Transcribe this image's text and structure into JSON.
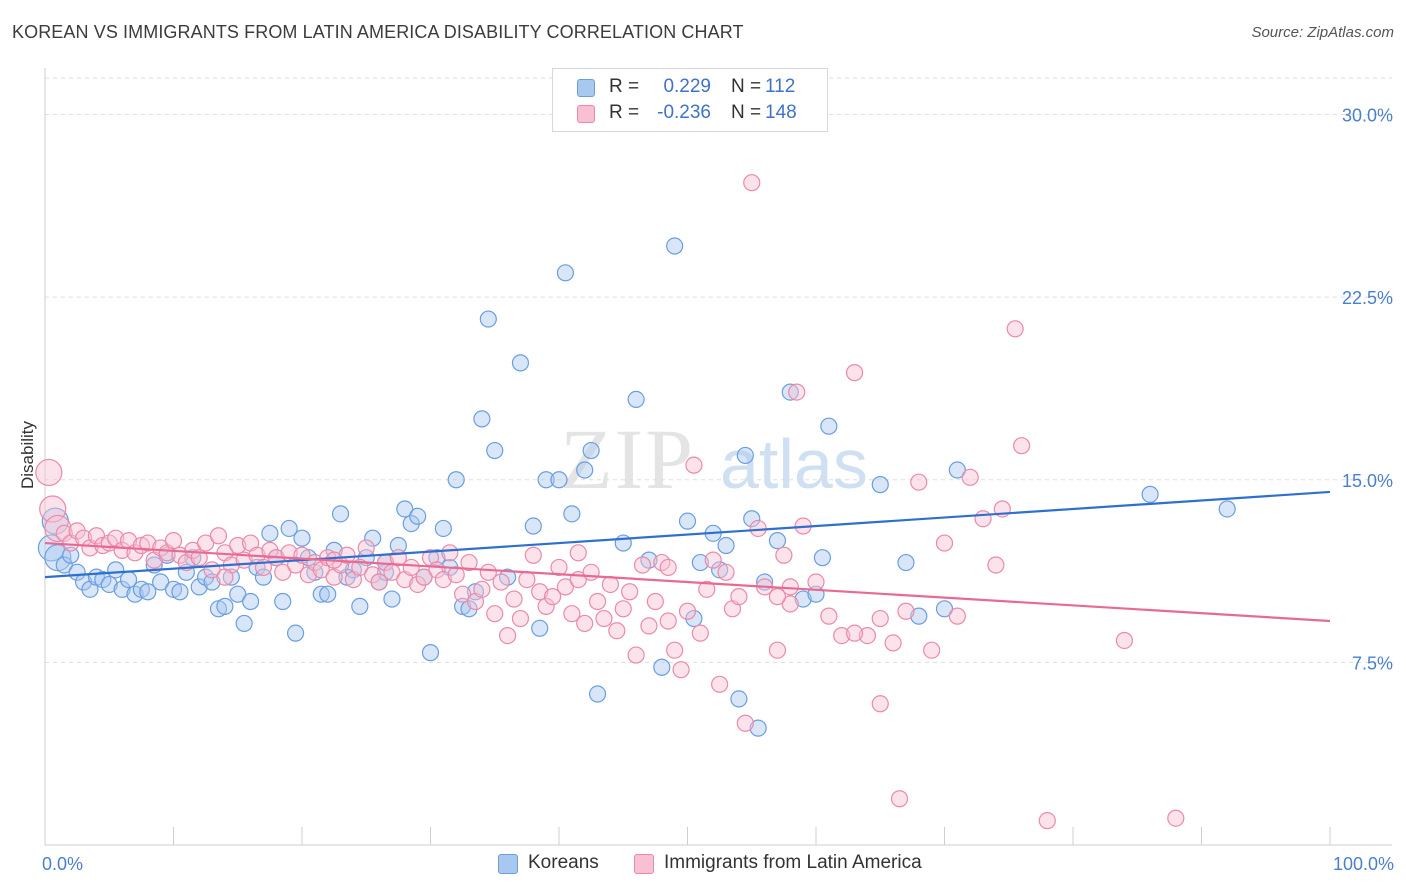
{
  "title": "KOREAN VS IMMIGRANTS FROM LATIN AMERICA DISABILITY CORRELATION CHART",
  "source": "Source: ZipAtlas.com",
  "watermark": {
    "part1": "ZIP",
    "part2": "atlas"
  },
  "legend": {
    "rows": [
      {
        "r_label": "R =",
        "r_value": "0.229",
        "n_label": "N =",
        "n_value": "112",
        "color": "#a9c8f0",
        "border": "#6a9ee0"
      },
      {
        "r_label": "R =",
        "r_value": "-0.236",
        "n_label": "N =",
        "n_value": "148",
        "color": "#f8c0d2",
        "border": "#ea8aa8"
      }
    ]
  },
  "bottom_legend": [
    {
      "label": "Koreans",
      "color": "#a9c8f0",
      "border": "#6a9ee0"
    },
    {
      "label": "Immigrants from Latin America",
      "color": "#f8c0d2",
      "border": "#ea8aa8"
    }
  ],
  "chart_data": {
    "type": "scatter",
    "title": "KOREAN VS IMMIGRANTS FROM LATIN AMERICA DISABILITY CORRELATION CHART",
    "xlabel": "",
    "ylabel": "Disability",
    "xlim": [
      0,
      100
    ],
    "ylim": [
      0,
      31.5
    ],
    "x_tick_labels": [
      "0.0%",
      "100.0%"
    ],
    "y_ticks": [
      7.5,
      15.0,
      22.5,
      30.0
    ],
    "y_tick_labels": [
      "7.5%",
      "15.0%",
      "22.5%",
      "30.0%"
    ],
    "grid": "horizontal dashed",
    "legend_position": "top-center",
    "series": [
      {
        "name": "Koreans",
        "color": "#6a9ee0",
        "fill": "#a9c8f0",
        "trend": {
          "x": [
            0,
            100
          ],
          "y": [
            11.0,
            14.5
          ],
          "color": "#2f6fd0"
        },
        "points": [
          [
            0.5,
            12.2
          ],
          [
            1.0,
            11.8
          ],
          [
            1.5,
            11.5
          ],
          [
            2.0,
            11.9
          ],
          [
            2.5,
            11.2
          ],
          [
            3.0,
            10.8
          ],
          [
            3.5,
            10.5
          ],
          [
            4.0,
            11.0
          ],
          [
            4.5,
            10.9
          ],
          [
            5.0,
            10.7
          ],
          [
            5.5,
            11.3
          ],
          [
            6.0,
            10.5
          ],
          [
            6.5,
            10.9
          ],
          [
            7.0,
            10.3
          ],
          [
            7.5,
            10.5
          ],
          [
            8.0,
            10.4
          ],
          [
            8.5,
            11.5
          ],
          [
            9.0,
            10.8
          ],
          [
            9.5,
            11.9
          ],
          [
            10.0,
            10.5
          ],
          [
            10.5,
            10.4
          ],
          [
            11.0,
            11.2
          ],
          [
            11.5,
            11.8
          ],
          [
            12.0,
            10.6
          ],
          [
            12.5,
            11.0
          ],
          [
            13.0,
            10.8
          ],
          [
            13.5,
            9.7
          ],
          [
            14.0,
            9.8
          ],
          [
            14.5,
            11.0
          ],
          [
            15.0,
            10.3
          ],
          [
            15.5,
            9.1
          ],
          [
            16.0,
            10.0
          ],
          [
            16.5,
            11.4
          ],
          [
            17.0,
            11.0
          ],
          [
            17.5,
            12.8
          ],
          [
            18.0,
            11.8
          ],
          [
            18.5,
            10.0
          ],
          [
            19.0,
            13.0
          ],
          [
            19.5,
            8.7
          ],
          [
            20.0,
            12.6
          ],
          [
            20.5,
            11.8
          ],
          [
            21.0,
            11.2
          ],
          [
            21.5,
            10.3
          ],
          [
            22.0,
            10.3
          ],
          [
            22.5,
            12.1
          ],
          [
            23.0,
            13.6
          ],
          [
            23.5,
            11.0
          ],
          [
            24.0,
            11.3
          ],
          [
            24.5,
            9.8
          ],
          [
            25.0,
            11.8
          ],
          [
            25.5,
            12.6
          ],
          [
            26.0,
            10.8
          ],
          [
            26.5,
            11.2
          ],
          [
            27.0,
            10.1
          ],
          [
            27.5,
            12.3
          ],
          [
            28.0,
            13.8
          ],
          [
            28.5,
            13.2
          ],
          [
            29.0,
            13.5
          ],
          [
            29.5,
            11.0
          ],
          [
            30.0,
            7.9
          ],
          [
            30.5,
            11.8
          ],
          [
            31.0,
            13.0
          ],
          [
            31.5,
            11.4
          ],
          [
            32.0,
            15.0
          ],
          [
            32.5,
            9.8
          ],
          [
            33.0,
            9.7
          ],
          [
            33.5,
            10.4
          ],
          [
            34.0,
            17.5
          ],
          [
            34.5,
            21.6
          ],
          [
            35.0,
            16.2
          ],
          [
            36.0,
            11.0
          ],
          [
            37.0,
            19.8
          ],
          [
            38.0,
            13.1
          ],
          [
            38.5,
            8.9
          ],
          [
            39.0,
            15.0
          ],
          [
            40.0,
            15.0
          ],
          [
            40.5,
            23.5
          ],
          [
            41.0,
            13.6
          ],
          [
            42.0,
            15.4
          ],
          [
            42.5,
            16.2
          ],
          [
            43.0,
            6.2
          ],
          [
            45.0,
            12.4
          ],
          [
            46.0,
            18.3
          ],
          [
            47.0,
            11.7
          ],
          [
            48.0,
            7.3
          ],
          [
            49.0,
            24.6
          ],
          [
            50.0,
            13.3
          ],
          [
            50.5,
            9.3
          ],
          [
            51.0,
            11.6
          ],
          [
            52.0,
            12.8
          ],
          [
            52.5,
            11.3
          ],
          [
            53.0,
            12.3
          ],
          [
            54.0,
            6.0
          ],
          [
            54.5,
            16.0
          ],
          [
            55.0,
            13.4
          ],
          [
            55.5,
            4.8
          ],
          [
            56.0,
            10.8
          ],
          [
            57.0,
            12.5
          ],
          [
            58.0,
            18.6
          ],
          [
            59.0,
            10.1
          ],
          [
            60.0,
            10.3
          ],
          [
            60.5,
            11.8
          ],
          [
            61.0,
            17.2
          ],
          [
            65.0,
            14.8
          ],
          [
            67.0,
            11.6
          ],
          [
            68.0,
            9.4
          ],
          [
            70.0,
            9.7
          ],
          [
            71.0,
            15.4
          ],
          [
            86.0,
            14.4
          ],
          [
            92.0,
            13.8
          ],
          [
            0.8,
            13.3
          ],
          [
            26.5,
            11.6
          ]
        ]
      },
      {
        "name": "Immigrants from Latin America",
        "color": "#ea8aa8",
        "fill": "#f8c0d2",
        "trend": {
          "x": [
            0,
            100
          ],
          "y": [
            12.4,
            9.2
          ],
          "color": "#e86a92"
        },
        "points": [
          [
            0.3,
            15.3
          ],
          [
            0.6,
            13.8
          ],
          [
            1.0,
            13.0
          ],
          [
            1.5,
            12.8
          ],
          [
            2.0,
            12.4
          ],
          [
            2.5,
            12.9
          ],
          [
            3.0,
            12.6
          ],
          [
            3.5,
            12.2
          ],
          [
            4.0,
            12.7
          ],
          [
            4.5,
            12.3
          ],
          [
            5.0,
            12.4
          ],
          [
            5.5,
            12.6
          ],
          [
            6.0,
            12.1
          ],
          [
            6.5,
            12.5
          ],
          [
            7.0,
            12.0
          ],
          [
            7.5,
            12.3
          ],
          [
            8.0,
            12.4
          ],
          [
            8.5,
            11.7
          ],
          [
            9.0,
            12.2
          ],
          [
            9.5,
            12.0
          ],
          [
            10.0,
            12.5
          ],
          [
            10.5,
            11.9
          ],
          [
            11.0,
            11.6
          ],
          [
            11.5,
            12.1
          ],
          [
            12.0,
            11.8
          ],
          [
            12.5,
            12.4
          ],
          [
            13.0,
            11.3
          ],
          [
            13.5,
            12.7
          ],
          [
            14.0,
            12.0
          ],
          [
            14.5,
            11.5
          ],
          [
            15.0,
            12.3
          ],
          [
            15.5,
            11.7
          ],
          [
            16.0,
            12.4
          ],
          [
            16.5,
            11.9
          ],
          [
            17.0,
            11.4
          ],
          [
            17.5,
            12.1
          ],
          [
            18.0,
            11.8
          ],
          [
            18.5,
            11.2
          ],
          [
            19.0,
            12.0
          ],
          [
            19.5,
            11.5
          ],
          [
            20.0,
            11.9
          ],
          [
            20.5,
            11.1
          ],
          [
            21.0,
            11.6
          ],
          [
            21.5,
            11.3
          ],
          [
            22.0,
            11.8
          ],
          [
            22.5,
            11.0
          ],
          [
            23.0,
            11.5
          ],
          [
            23.5,
            11.9
          ],
          [
            24.0,
            10.9
          ],
          [
            24.5,
            11.4
          ],
          [
            25.0,
            12.2
          ],
          [
            25.5,
            11.1
          ],
          [
            26.0,
            10.8
          ],
          [
            26.5,
            11.6
          ],
          [
            27.0,
            11.2
          ],
          [
            27.5,
            11.8
          ],
          [
            28.0,
            10.9
          ],
          [
            28.5,
            11.4
          ],
          [
            29.0,
            10.7
          ],
          [
            29.5,
            11.0
          ],
          [
            30.0,
            11.8
          ],
          [
            30.5,
            11.3
          ],
          [
            31.0,
            10.9
          ],
          [
            31.5,
            12.0
          ],
          [
            32.0,
            11.1
          ],
          [
            32.5,
            10.3
          ],
          [
            33.0,
            11.6
          ],
          [
            33.5,
            10.0
          ],
          [
            34.0,
            10.5
          ],
          [
            34.5,
            11.2
          ],
          [
            35.0,
            9.5
          ],
          [
            35.5,
            10.8
          ],
          [
            36.0,
            8.6
          ],
          [
            36.5,
            10.1
          ],
          [
            37.0,
            9.3
          ],
          [
            37.5,
            10.9
          ],
          [
            38.0,
            11.9
          ],
          [
            38.5,
            10.4
          ],
          [
            39.0,
            9.8
          ],
          [
            39.5,
            10.2
          ],
          [
            40.0,
            11.4
          ],
          [
            40.5,
            10.6
          ],
          [
            41.0,
            9.5
          ],
          [
            41.5,
            10.9
          ],
          [
            42.0,
            9.1
          ],
          [
            42.5,
            11.2
          ],
          [
            43.0,
            10.0
          ],
          [
            43.5,
            9.3
          ],
          [
            44.0,
            10.7
          ],
          [
            44.5,
            8.8
          ],
          [
            45.0,
            9.7
          ],
          [
            45.5,
            10.4
          ],
          [
            46.0,
            7.8
          ],
          [
            46.5,
            11.5
          ],
          [
            47.0,
            9.0
          ],
          [
            47.5,
            10.0
          ],
          [
            48.0,
            11.6
          ],
          [
            48.5,
            9.2
          ],
          [
            49.0,
            8.0
          ],
          [
            49.5,
            7.2
          ],
          [
            50.0,
            9.6
          ],
          [
            50.5,
            15.6
          ],
          [
            51.0,
            8.7
          ],
          [
            51.5,
            10.5
          ],
          [
            52.0,
            11.7
          ],
          [
            52.5,
            6.6
          ],
          [
            53.0,
            11.2
          ],
          [
            53.5,
            9.7
          ],
          [
            54.0,
            10.2
          ],
          [
            54.5,
            5.0
          ],
          [
            55.0,
            27.2
          ],
          [
            55.5,
            13.0
          ],
          [
            56.0,
            10.6
          ],
          [
            57.0,
            8.0
          ],
          [
            57.5,
            11.9
          ],
          [
            58.0,
            9.9
          ],
          [
            58.5,
            18.6
          ],
          [
            59.0,
            13.1
          ],
          [
            60.0,
            10.8
          ],
          [
            61.0,
            9.4
          ],
          [
            62.0,
            8.6
          ],
          [
            63.0,
            19.4
          ],
          [
            64.0,
            8.6
          ],
          [
            65.0,
            5.8
          ],
          [
            66.0,
            8.3
          ],
          [
            66.5,
            1.9
          ],
          [
            67.0,
            9.6
          ],
          [
            68.0,
            14.9
          ],
          [
            69.0,
            8.0
          ],
          [
            70.0,
            12.4
          ],
          [
            71.0,
            9.4
          ],
          [
            72.0,
            15.1
          ],
          [
            73.0,
            13.4
          ],
          [
            74.0,
            11.5
          ],
          [
            74.5,
            13.8
          ],
          [
            75.5,
            21.2
          ],
          [
            76.0,
            16.4
          ],
          [
            78.0,
            1.0
          ],
          [
            84.0,
            8.4
          ],
          [
            88.0,
            1.1
          ],
          [
            41.5,
            12.0
          ],
          [
            48.5,
            11.4
          ],
          [
            57.0,
            10.2
          ],
          [
            65.0,
            9.3
          ],
          [
            58.0,
            10.6
          ],
          [
            63.0,
            8.7
          ],
          [
            22.5,
            11.7
          ],
          [
            14.0,
            11.0
          ]
        ]
      }
    ]
  }
}
